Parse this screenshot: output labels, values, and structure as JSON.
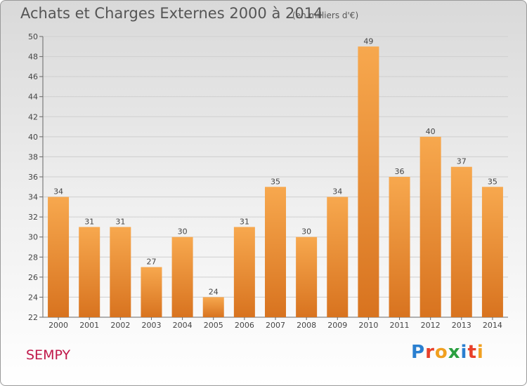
{
  "title": "Achats et Charges Externes 2000 à 2014",
  "unit": "(en milliers d'€)",
  "commune": "SEMPY",
  "logo": [
    "P",
    "r",
    "o",
    "x",
    "i",
    "t",
    "i"
  ],
  "colors": {
    "bar_top": "#f7a84e",
    "bar_bottom": "#d8731f",
    "grid": "#cfcfcf",
    "title": "#555555",
    "commune": "#c0184a"
  },
  "chart_data": {
    "type": "bar",
    "categories": [
      "2000",
      "2001",
      "2002",
      "2003",
      "2004",
      "2005",
      "2006",
      "2007",
      "2008",
      "2009",
      "2010",
      "2011",
      "2012",
      "2013",
      "2014"
    ],
    "values": [
      34,
      31,
      31,
      27,
      30,
      24,
      31,
      35,
      30,
      34,
      49,
      36,
      40,
      37,
      35
    ],
    "ylim": [
      22,
      50
    ],
    "yticks": [
      22,
      24,
      26,
      28,
      30,
      32,
      34,
      36,
      38,
      40,
      42,
      44,
      46,
      48,
      50
    ],
    "grid": true
  }
}
